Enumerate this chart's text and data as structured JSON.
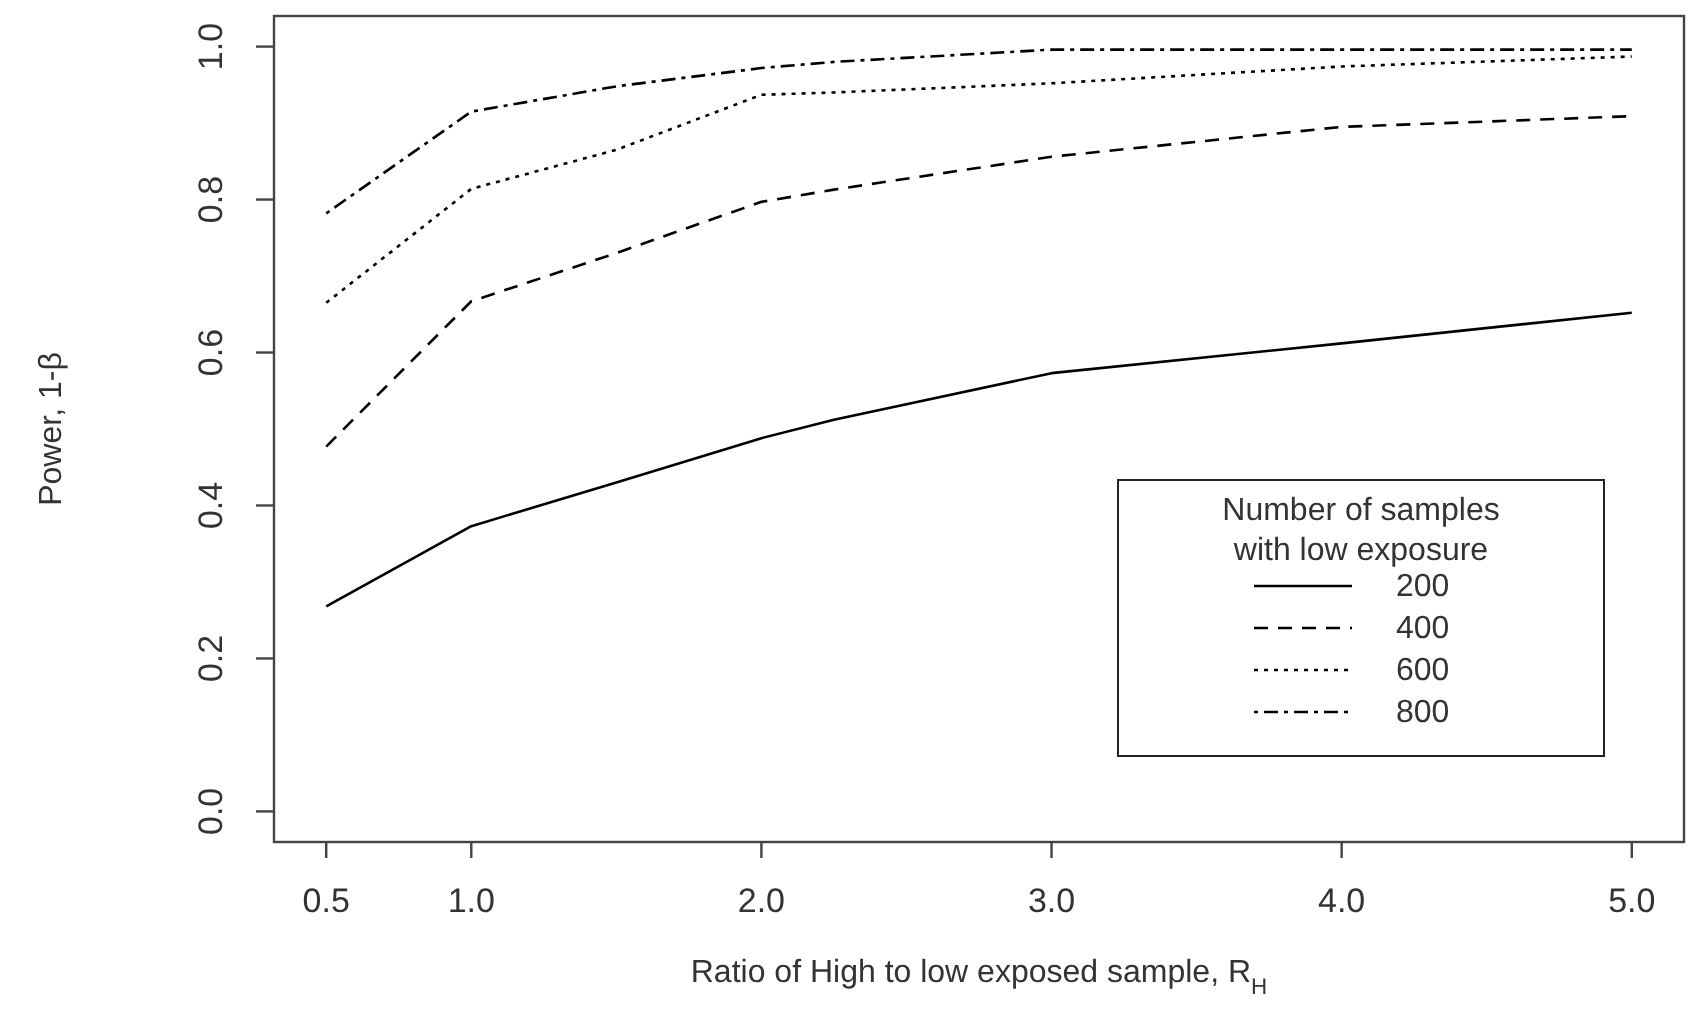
{
  "chart_data": {
    "type": "line",
    "x": [
      0.5,
      1,
      1.5,
      2,
      2.25,
      3,
      4,
      5
    ],
    "series": [
      {
        "name": "200",
        "color": "#000000",
        "line_style": "solid",
        "values": [
          0.268,
          0.373,
          0.43,
          0.488,
          0.512,
          0.573,
          0.612,
          0.652
        ]
      },
      {
        "name": "400",
        "color": "#000000",
        "line_style": "dashed",
        "values": [
          0.477,
          0.667,
          0.73,
          0.797,
          0.813,
          0.856,
          0.895,
          0.909
        ]
      },
      {
        "name": "600",
        "color": "#000000",
        "line_style": "dotted",
        "values": [
          0.665,
          0.814,
          0.865,
          0.937,
          0.94,
          0.952,
          0.974,
          0.987
        ]
      },
      {
        "name": "800",
        "color": "#000000",
        "line_style": "dashdot",
        "values": [
          0.782,
          0.915,
          0.948,
          0.972,
          0.98,
          0.996,
          0.996,
          0.996
        ]
      }
    ],
    "xlabel": "Ratio of High to low exposed sample, R$_{H}$",
    "ylabel": "Power, 1-β",
    "legend_title": "Number of samples with low exposure",
    "legend": "bottom right",
    "xlim": [
      0.32,
      5.18
    ],
    "xticks": [
      {
        "value": 0.5,
        "label": "0.5"
      },
      {
        "value": 1,
        "label": "1.0"
      },
      {
        "value": 2,
        "label": "2.0"
      },
      {
        "value": 3,
        "label": "3.0"
      },
      {
        "value": 4,
        "label": "4.0"
      },
      {
        "value": 5,
        "label": "5.0"
      }
    ],
    "ylim": [
      -0.04,
      1.04
    ],
    "yticks": [
      {
        "value": 0,
        "label": "0.0"
      },
      0.2,
      0.4,
      0.6,
      0.8,
      {
        "value": 1,
        "label": "1.0"
      }
    ],
    "grid": false
  }
}
